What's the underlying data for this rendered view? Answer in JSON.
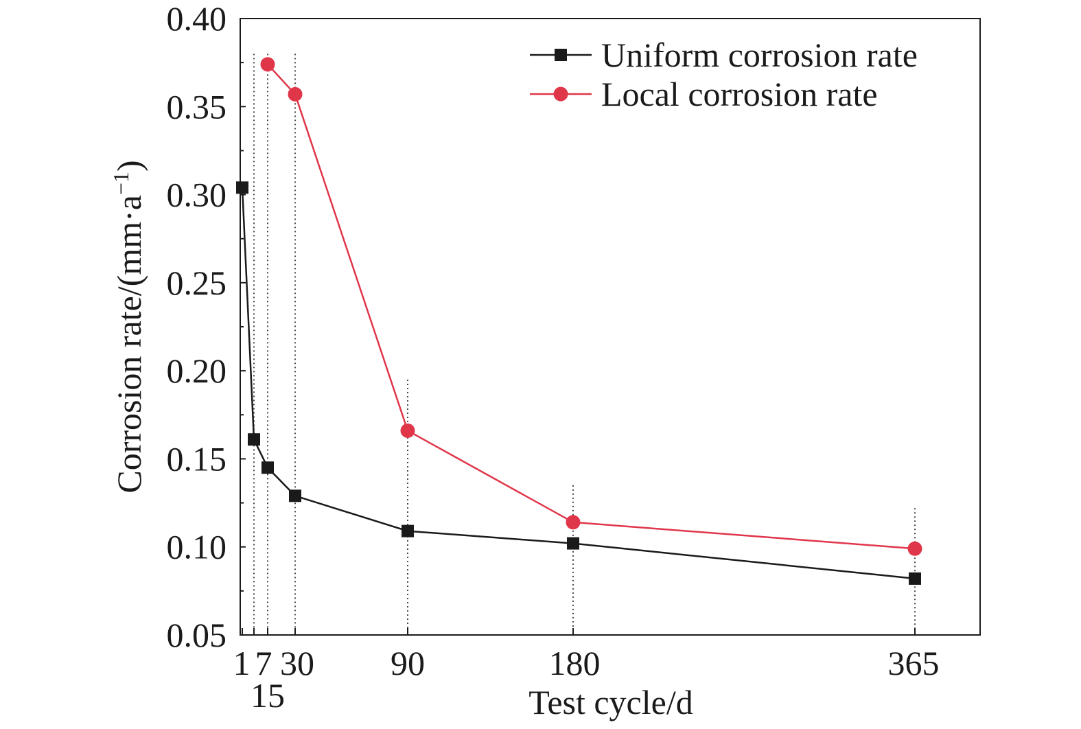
{
  "chart_data": {
    "type": "line",
    "xlabel": "Test cycle/d",
    "ylabel": "Corrosion rate/(mm·a",
    "ylabel_sup": "−1",
    "ylabel_close": ")",
    "ylim": [
      0.05,
      0.4
    ],
    "y_ticks": [
      "0.05",
      "0.10",
      "0.15",
      "0.20",
      "0.25",
      "0.30",
      "0.35",
      "0.40"
    ],
    "x_ticks": [
      {
        "value": 1,
        "label": "1"
      },
      {
        "value": 7,
        "label": "7"
      },
      {
        "value": 15,
        "label": "15"
      },
      {
        "value": 30,
        "label": "30"
      },
      {
        "value": 90,
        "label": "90"
      },
      {
        "value": 180,
        "label": "180"
      },
      {
        "value": 365,
        "label": "365"
      }
    ],
    "legend_position": "top-right",
    "grid": false,
    "series": [
      {
        "name": "Uniform corrosion rate",
        "color": "#1a1a1a",
        "marker": "square",
        "points": [
          [
            1,
            0.304
          ],
          [
            7,
            0.161
          ],
          [
            15,
            0.145
          ],
          [
            30,
            0.129
          ],
          [
            90,
            0.109
          ],
          [
            180,
            0.102
          ],
          [
            365,
            0.082
          ]
        ]
      },
      {
        "name": "Local corrosion rate",
        "color": "#e0364a",
        "marker": "circle",
        "points": [
          [
            15,
            0.374
          ],
          [
            30,
            0.357
          ],
          [
            90,
            0.166
          ],
          [
            180,
            0.114
          ],
          [
            365,
            0.099
          ]
        ]
      }
    ],
    "reference_lines": [
      {
        "x": 7,
        "top": 0.38
      },
      {
        "x": 15,
        "top": 0.38
      },
      {
        "x": 30,
        "top": 0.38
      },
      {
        "x": 90,
        "top": 0.195
      },
      {
        "x": 180,
        "top": 0.135
      },
      {
        "x": 365,
        "top": 0.122
      }
    ]
  }
}
